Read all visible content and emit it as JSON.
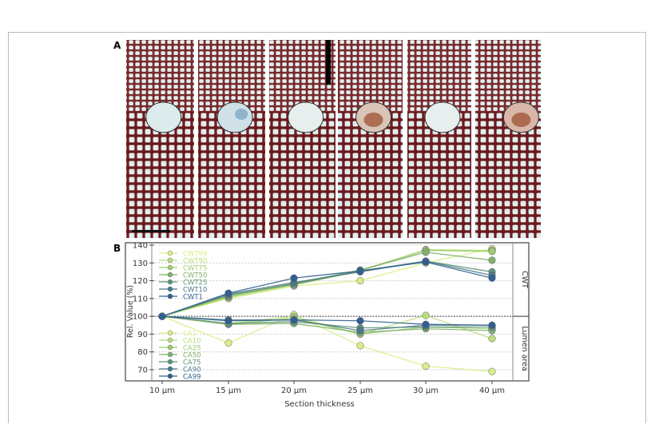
{
  "panel_a": {
    "label": "A",
    "micrographs": [
      "10 µm",
      "15 µm",
      "20 µm",
      "25 µm",
      "30 µm",
      "40 µm"
    ]
  },
  "chart_data": {
    "panel_label": "B",
    "type": "line",
    "xlabel": "Section thickness",
    "ylabel": "Rel. Value (%)",
    "categories": [
      "10 µm",
      "15 µm",
      "20 µm",
      "25 µm",
      "30 µm",
      "40 µm"
    ],
    "ylim": [
      67,
      141
    ],
    "yticks": [
      70,
      80,
      90,
      100,
      110,
      120,
      130,
      140
    ],
    "grid": "horizontal dotted",
    "reference_line": 100,
    "facet_labels": [
      "CWT",
      "Lumen area"
    ],
    "legend_placement": "left",
    "series": [
      {
        "name": "CWT99",
        "group": "CWT",
        "color": "#d8ef86",
        "values": [
          100,
          110,
          117,
          120,
          130,
          138
        ]
      },
      {
        "name": "CWT90",
        "group": "CWT",
        "color": "#b9de79",
        "values": [
          100,
          110.5,
          117.5,
          125.5,
          137.5,
          137
        ]
      },
      {
        "name": "CWT75",
        "group": "CWT",
        "color": "#9ccc6e",
        "values": [
          100,
          111,
          118,
          126,
          137,
          136.5
        ]
      },
      {
        "name": "CWT50",
        "group": "CWT",
        "color": "#7fb16b",
        "values": [
          100,
          111.5,
          118.5,
          126,
          136,
          131.5
        ]
      },
      {
        "name": "CWT25",
        "group": "CWT",
        "color": "#609577",
        "values": [
          100,
          112,
          118,
          125.5,
          131,
          125
        ]
      },
      {
        "name": "CWT10",
        "group": "CWT",
        "color": "#4a7a86",
        "values": [
          100,
          112.5,
          119,
          125,
          131,
          123
        ]
      },
      {
        "name": "CWT1",
        "group": "CWT",
        "color": "#31608f",
        "values": [
          100,
          113,
          121.5,
          125.5,
          130.5,
          121.5
        ]
      },
      {
        "name": "CA1",
        "group": "Lumen area",
        "color": "#d8ef86",
        "values": [
          100,
          85,
          101,
          83.5,
          72,
          69
        ]
      },
      {
        "name": "CA10",
        "group": "Lumen area",
        "color": "#b9de79",
        "values": [
          100,
          96,
          100,
          90,
          100.5,
          87.5
        ]
      },
      {
        "name": "CA25",
        "group": "Lumen area",
        "color": "#9ccc6e",
        "values": [
          100,
          95.5,
          99,
          90,
          94,
          93
        ]
      },
      {
        "name": "CA50",
        "group": "Lumen area",
        "color": "#7fb16b",
        "values": [
          100,
          95.5,
          96,
          91,
          93,
          92
        ]
      },
      {
        "name": "CA75",
        "group": "Lumen area",
        "color": "#609577",
        "values": [
          100,
          96,
          97,
          93.5,
          94,
          94
        ]
      },
      {
        "name": "CA90",
        "group": "Lumen area",
        "color": "#4a7a86",
        "values": [
          100,
          98,
          98,
          92,
          95,
          95
        ]
      },
      {
        "name": "CA99",
        "group": "Lumen area",
        "color": "#31608f",
        "values": [
          100,
          97.5,
          98,
          97.5,
          95.5,
          95
        ]
      }
    ]
  }
}
